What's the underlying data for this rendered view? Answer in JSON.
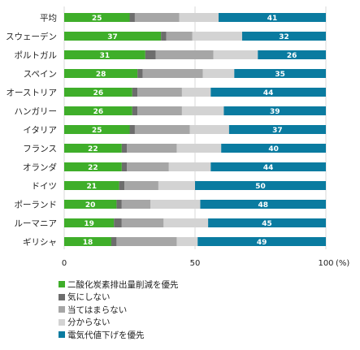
{
  "chart_data": {
    "type": "bar",
    "stacked": true,
    "orientation": "horizontal",
    "categories": [
      "平均",
      "スウェーデン",
      "ポルトガル",
      "スペイン",
      "オーストリア",
      "ハンガリー",
      "イタリア",
      "フランス",
      "オランダ",
      "ドイツ",
      "ポーランド",
      "ルーマニア",
      "ギリシャ"
    ],
    "series": [
      {
        "name": "二酸化炭素排出量削減を優先",
        "color": "#3fae2a",
        "values": [
          25,
          37,
          31,
          28,
          26,
          26,
          25,
          22,
          22,
          21,
          20,
          19,
          18
        ]
      },
      {
        "name": "気にしない",
        "color": "#6d6d6d",
        "values": [
          2,
          2,
          4,
          2,
          2,
          2,
          2,
          2,
          2,
          2,
          2,
          3,
          2
        ]
      },
      {
        "name": "当てはまらない",
        "color": "#a6a6a6",
        "values": [
          17,
          10,
          22,
          23,
          17,
          17,
          21,
          19,
          16,
          13,
          11,
          16,
          23
        ]
      },
      {
        "name": "分からない",
        "color": "#d3d3d3",
        "values": [
          15,
          19,
          17,
          12,
          11,
          16,
          15,
          17,
          16,
          14,
          19,
          17,
          8
        ]
      },
      {
        "name": "電気代値下げを優先",
        "color": "#0a7ba0",
        "values": [
          41,
          32,
          26,
          35,
          44,
          39,
          37,
          40,
          44,
          50,
          48,
          45,
          49
        ]
      }
    ],
    "labeled_series": [
      "二酸化炭素排出量削減を優先",
      "電気代値下げを優先"
    ],
    "xlim": [
      0,
      100
    ],
    "xticks": [
      "0",
      "50",
      "100"
    ],
    "xlabel_unit": "(%)",
    "legend_position": "bottom-left",
    "grid": true
  }
}
